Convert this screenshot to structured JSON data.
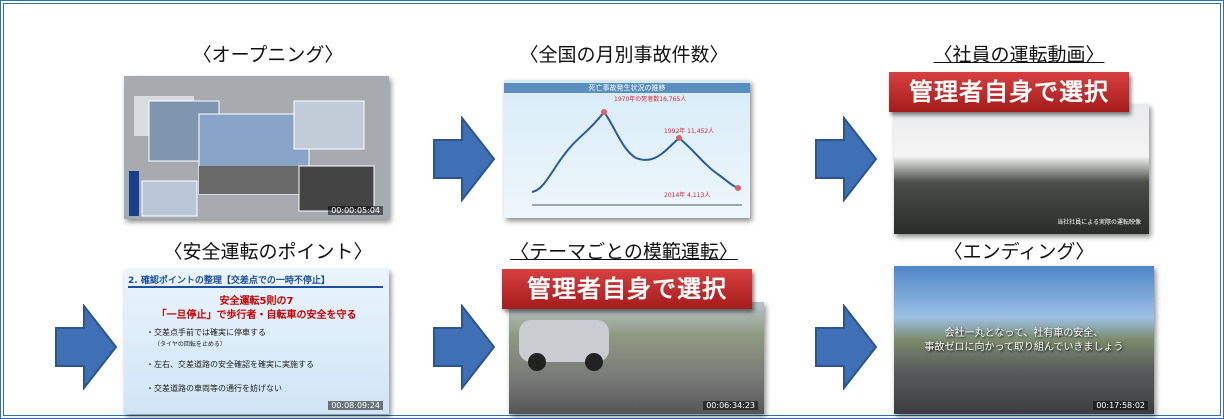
{
  "panels": [
    {
      "title": "〈オープニング〉",
      "timestamp": "00:00:05:04"
    },
    {
      "title": "〈全国の月別事故件数〉",
      "chart_title": "死亡事故発生状況の推移",
      "annotations": [
        "1970年の死者数16,765人",
        "1992年 11,452人",
        "2014年 4,113人"
      ]
    },
    {
      "title": "〈社員の運転動画〉",
      "banner": "管理者自身で選択",
      "caption": "当社社員による実際の運転映像"
    },
    {
      "title": "〈安全運転のポイント〉",
      "slide_heading": "2. 確認ポイントの整理【交差点での一時不停止】",
      "slide_rule": "安全運転5則の7",
      "slide_lead": "「一旦停止」で歩行者・自転車の安全を守る",
      "bullets": [
        "・交差点手前では確実に停車する",
        "（タイヤの回転を止める）",
        "・左右、交差道路の安全確認を確実に実施する",
        "・交差道路の車両等の通行を妨げない"
      ],
      "timestamp": "00:08:09:24"
    },
    {
      "title": "〈テーマごとの模範運転〉",
      "banner": "管理者自身で選択",
      "timestamp": "00:06:34:23"
    },
    {
      "title": "〈エンディング〉",
      "message": [
        "会社一丸となって、社有車の安全、",
        "事故ゼロに向かって取り組んでいきましょう"
      ],
      "timestamp": "00:17:58:02"
    }
  ]
}
